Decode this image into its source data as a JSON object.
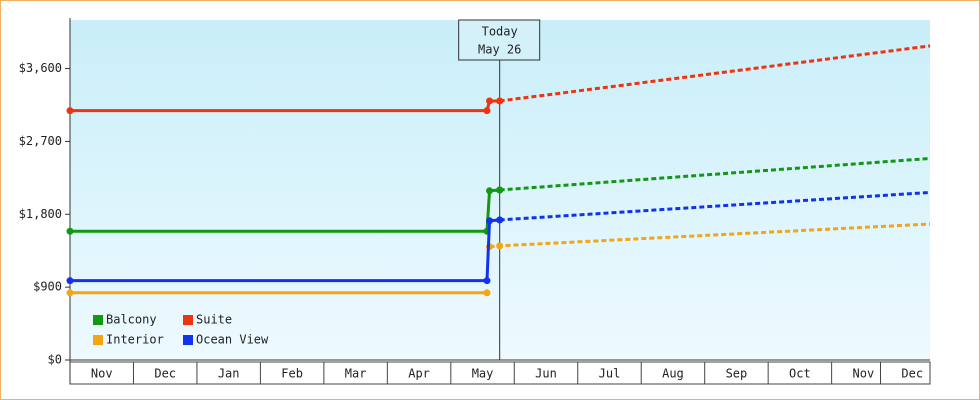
{
  "chart_data": {
    "type": "line",
    "xlim": [
      0,
      13.55
    ],
    "xticks": [
      {
        "value": 0.5,
        "label": "Nov"
      },
      {
        "value": 1.5,
        "label": "Dec"
      },
      {
        "value": 2.5,
        "label": "Jan"
      },
      {
        "value": 3.5,
        "label": "Feb"
      },
      {
        "value": 4.5,
        "label": "Mar"
      },
      {
        "value": 5.5,
        "label": "Apr"
      },
      {
        "value": 6.5,
        "label": "May"
      },
      {
        "value": 7.5,
        "label": "Jun"
      },
      {
        "value": 8.5,
        "label": "Jul"
      },
      {
        "value": 9.5,
        "label": "Aug"
      },
      {
        "value": 10.5,
        "label": "Sep"
      },
      {
        "value": 11.5,
        "label": "Oct"
      },
      {
        "value": 12.5,
        "label": "Nov"
      },
      {
        "value": 13.27,
        "label": "Dec"
      }
    ],
    "ylim": [
      0,
      4200
    ],
    "yticks": [
      {
        "value": 0,
        "label": "$0"
      },
      {
        "value": 900,
        "label": "$900"
      },
      {
        "value": 1800,
        "label": "$1,800"
      },
      {
        "value": 2700,
        "label": "$2,700"
      },
      {
        "value": 3600,
        "label": "$3,600"
      }
    ],
    "today": {
      "x": 6.77,
      "label": [
        "Today",
        "May 26"
      ]
    },
    "series": [
      {
        "name": "Balcony",
        "color": "#119911",
        "x": [
          0,
          6.57,
          6.61,
          6.77
        ],
        "values": [
          1590,
          1590,
          2090,
          2100
        ],
        "forecast_x": [
          6.77,
          13.55
        ],
        "forecast_values": [
          2100,
          2490
        ]
      },
      {
        "name": "Suite",
        "color": "#ee3311",
        "x": [
          0,
          6.57,
          6.61,
          6.77
        ],
        "values": [
          3080,
          3080,
          3200,
          3200
        ],
        "forecast_x": [
          6.77,
          13.55
        ],
        "forecast_values": [
          3200,
          3880
        ]
      },
      {
        "name": "Interior",
        "color": "#f5a511",
        "x": [
          0,
          6.57
        ],
        "values": [
          830,
          830
        ],
        "forecast_x": [
          6.61,
          6.77,
          13.55
        ],
        "forecast_values": [
          1400,
          1410,
          1680
        ]
      },
      {
        "name": "Ocean View",
        "color": "#1133ee",
        "x": [
          0,
          6.57,
          6.61,
          6.77
        ],
        "values": [
          980,
          980,
          1720,
          1730
        ],
        "forecast_x": [
          6.77,
          13.55
        ],
        "forecast_values": [
          1730,
          2070
        ]
      }
    ]
  }
}
